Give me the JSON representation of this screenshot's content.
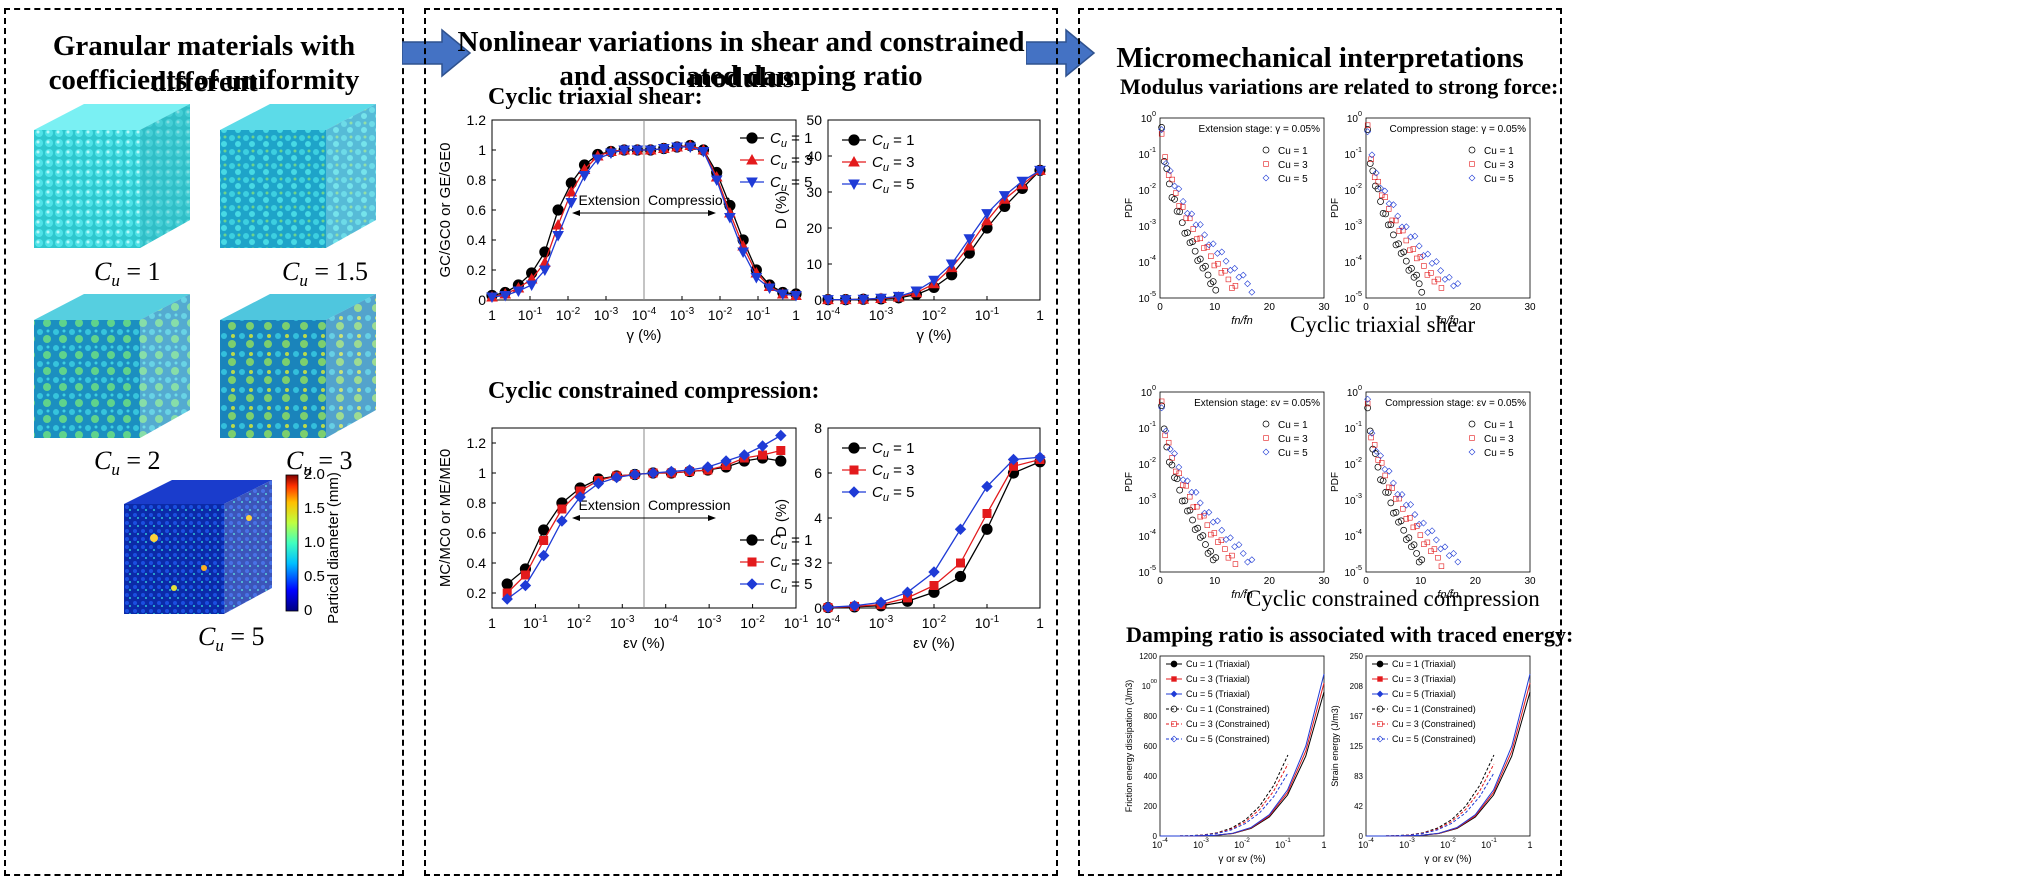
{
  "panels": {
    "left": {
      "title_line1": "Granular materials with different",
      "title_line2": "coefficients of uniformity",
      "cubes": [
        {
          "label": "C",
          "sub": "u",
          "eq": " = 1"
        },
        {
          "label": "C",
          "sub": "u",
          "eq": " = 1.5"
        },
        {
          "label": "C",
          "sub": "u",
          "eq": " = 2"
        },
        {
          "label": "C",
          "sub": "u",
          "eq": " = 3"
        },
        {
          "label": "C",
          "sub": "u",
          "eq": " = 5"
        }
      ],
      "colorbar": {
        "label": "Partical diameter (mm)",
        "ticks": [
          "2.0",
          "1.5",
          "1.0",
          "0.5",
          "0"
        ]
      }
    },
    "middle": {
      "title_line1": "Nonlinear variations in shear and constrained modulus",
      "title_line2": "and associated damping ratio",
      "sub1": "Cyclic triaxial shear:",
      "sub2": "Cyclic constrained compression:"
    },
    "right": {
      "title": "Micromechanical interpretations",
      "sub1": "Modulus variations are related to strong force:",
      "caption1": "Cyclic triaxial shear",
      "caption2": "Cyclic constrained compression",
      "sub2": "Damping ratio is associated with traced energy:"
    }
  },
  "chart_data": [
    {
      "type": "line",
      "id": "triaxial-modulus",
      "ylabel": "GC/GC0 or GE/GE0",
      "xlabel": "γ (%)",
      "ylim": [
        0,
        1.2
      ],
      "yticks": [
        "0",
        "0.2",
        "0.4",
        "0.6",
        "0.8",
        "1",
        "1.2"
      ],
      "xticks": [
        "1",
        "10-1",
        "10-2",
        "10-3",
        "10-4",
        "10-3",
        "10-2",
        "10-1",
        "1"
      ],
      "annotations": [
        "Extension",
        "Compression"
      ],
      "legend": [
        "Cu = 1",
        "Cu = 3",
        "Cu = 5"
      ],
      "series": [
        {
          "name": "Cu = 1",
          "color": "#000000",
          "marker": "circle",
          "values": [
            0.03,
            0.05,
            0.1,
            0.18,
            0.32,
            0.6,
            0.78,
            0.9,
            0.97,
            0.99,
            1.0,
            1.0,
            1.0,
            1.01,
            1.02,
            1.03,
            1.0,
            0.85,
            0.63,
            0.4,
            0.2,
            0.1,
            0.05,
            0.04
          ]
        },
        {
          "name": "Cu = 3",
          "color": "#e31a1c",
          "marker": "triangle",
          "values": [
            0.02,
            0.04,
            0.08,
            0.14,
            0.25,
            0.5,
            0.72,
            0.87,
            0.96,
            0.99,
            1.0,
            1.0,
            1.0,
            1.01,
            1.02,
            1.03,
            1.0,
            0.82,
            0.58,
            0.36,
            0.18,
            0.09,
            0.04,
            0.03
          ]
        },
        {
          "name": "Cu = 5",
          "color": "#1f3bd6",
          "marker": "triangle-down",
          "values": [
            0.02,
            0.03,
            0.06,
            0.1,
            0.2,
            0.43,
            0.65,
            0.83,
            0.94,
            0.98,
            1.0,
            1.0,
            1.0,
            1.01,
            1.02,
            1.02,
            0.99,
            0.8,
            0.55,
            0.32,
            0.15,
            0.08,
            0.04,
            0.03
          ]
        }
      ]
    },
    {
      "type": "line",
      "id": "triaxial-damping",
      "ylabel": "D (%)",
      "xlabel": "γ (%)",
      "ylim": [
        0,
        50
      ],
      "yticks": [
        "0",
        "10",
        "20",
        "30",
        "40",
        "50"
      ],
      "xticks": [
        "10-4",
        "10-3",
        "10-2",
        "10-1",
        "1"
      ],
      "legend": [
        "Cu = 1",
        "Cu = 3",
        "Cu = 5"
      ],
      "series": [
        {
          "name": "Cu = 1",
          "values": [
            0.1,
            0.1,
            0.2,
            0.3,
            0.6,
            1.5,
            3.5,
            7,
            13,
            20,
            26,
            31,
            36
          ]
        },
        {
          "name": "Cu = 3",
          "values": [
            0.1,
            0.1,
            0.2,
            0.4,
            0.8,
            2,
            4.5,
            9,
            15,
            22,
            28,
            32,
            36
          ]
        },
        {
          "name": "Cu = 5",
          "values": [
            0.1,
            0.1,
            0.2,
            0.5,
            1,
            2.5,
            5.5,
            10,
            17,
            24,
            29,
            33,
            36
          ]
        }
      ]
    },
    {
      "type": "line",
      "id": "constrained-modulus",
      "ylabel": "MC/MC0 or ME/ME0",
      "xlabel": "εv (%)",
      "ylim": [
        0.1,
        1.3
      ],
      "yticks": [
        "0.2",
        "0.4",
        "0.6",
        "0.8",
        "1",
        "1.2"
      ],
      "xticks": [
        "1",
        "10-1",
        "10-2",
        "10-3",
        "10-4",
        "10-3",
        "10-2",
        "10-1"
      ],
      "annotations": [
        "Extension",
        "Compression"
      ],
      "legend": [
        "Cu = 1",
        "Cu = 3",
        "Cu = 5"
      ],
      "series": [
        {
          "name": "Cu = 1",
          "values": [
            0.26,
            0.36,
            0.62,
            0.8,
            0.9,
            0.96,
            0.98,
            0.99,
            1.0,
            1.0,
            1.01,
            1.02,
            1.04,
            1.08,
            1.1,
            1.08
          ]
        },
        {
          "name": "Cu = 3",
          "values": [
            0.2,
            0.32,
            0.55,
            0.76,
            0.88,
            0.95,
            0.98,
            0.99,
            1.0,
            1.0,
            1.01,
            1.02,
            1.05,
            1.1,
            1.12,
            1.15
          ]
        },
        {
          "name": "Cu = 5",
          "values": [
            0.16,
            0.25,
            0.45,
            0.68,
            0.84,
            0.93,
            0.97,
            0.99,
            1.0,
            1.01,
            1.02,
            1.04,
            1.08,
            1.12,
            1.18,
            1.25
          ]
        }
      ]
    },
    {
      "type": "line",
      "id": "constrained-damping",
      "ylabel": "D (%)",
      "xlabel": "εv (%)",
      "ylim": [
        0,
        8
      ],
      "yticks": [
        "0",
        "2",
        "4",
        "6",
        "8"
      ],
      "xticks": [
        "10-4",
        "10-3",
        "10-2",
        "10-1",
        "1"
      ],
      "legend": [
        "Cu = 1",
        "Cu = 3",
        "Cu = 5"
      ],
      "series": [
        {
          "name": "Cu = 1",
          "values": [
            0.02,
            0.05,
            0.1,
            0.3,
            0.7,
            1.4,
            3.5,
            6,
            6.5
          ]
        },
        {
          "name": "Cu = 3",
          "values": [
            0.02,
            0.07,
            0.15,
            0.45,
            1.0,
            2.0,
            4.2,
            6.3,
            6.6
          ]
        },
        {
          "name": "Cu = 5",
          "values": [
            0.03,
            0.1,
            0.25,
            0.7,
            1.6,
            3.5,
            5.4,
            6.6,
            6.7
          ]
        }
      ]
    },
    {
      "type": "scatter",
      "id": "pdf-triaxial-extension",
      "title": "Extension stage: γ = 0.05%",
      "ylabel": "PDF",
      "xlabel": "fn/f̄n",
      "xlim": [
        0,
        30
      ],
      "legend": [
        "Cu = 1",
        "Cu = 3",
        "Cu = 5"
      ]
    },
    {
      "type": "scatter",
      "id": "pdf-triaxial-compression",
      "title": "Compression stage: γ = 0.05%",
      "ylabel": "PDF",
      "xlabel": "fn/f̄n",
      "xlim": [
        0,
        30
      ],
      "legend": [
        "Cu = 1",
        "Cu = 3",
        "Cu = 5"
      ]
    },
    {
      "type": "scatter",
      "id": "pdf-constrained-extension",
      "title": "Extension stage: εv = 0.05%",
      "ylabel": "PDF",
      "xlabel": "fn/f̄n",
      "xlim": [
        0,
        30
      ],
      "legend": [
        "Cu = 1",
        "Cu = 3",
        "Cu = 5"
      ]
    },
    {
      "type": "scatter",
      "id": "pdf-constrained-compression",
      "title": "Compression stage: εv = 0.05%",
      "ylabel": "PDF",
      "xlabel": "fn/f̄n",
      "xlim": [
        0,
        30
      ],
      "legend": [
        "Cu = 1",
        "Cu = 3",
        "Cu = 5"
      ]
    },
    {
      "type": "line",
      "id": "friction-energy",
      "ylabel": "Friction energy dissipation (J/m3)",
      "xlabel": "γ or εv (%)",
      "ylim": [
        0,
        1200
      ],
      "legend": [
        "Cu = 1 (Triaxial)",
        "Cu = 3 (Triaxial)",
        "Cu = 5 (Triaxial)",
        "Cu = 1 (Constrained)",
        "Cu = 3 (Constrained)",
        "Cu = 5 (Constrained)"
      ]
    },
    {
      "type": "line",
      "id": "strain-energy",
      "ylabel": "Strain energy (J/m3)",
      "xlabel": "γ or εv (%)",
      "ylim": [
        0,
        250
      ],
      "legend": [
        "Cu = 1 (Triaxial)",
        "Cu = 3 (Triaxial)",
        "Cu = 5 (Triaxial)",
        "Cu = 1 (Constrained)",
        "Cu = 3 (Constrained)",
        "Cu = 5 (Constrained)"
      ]
    }
  ]
}
